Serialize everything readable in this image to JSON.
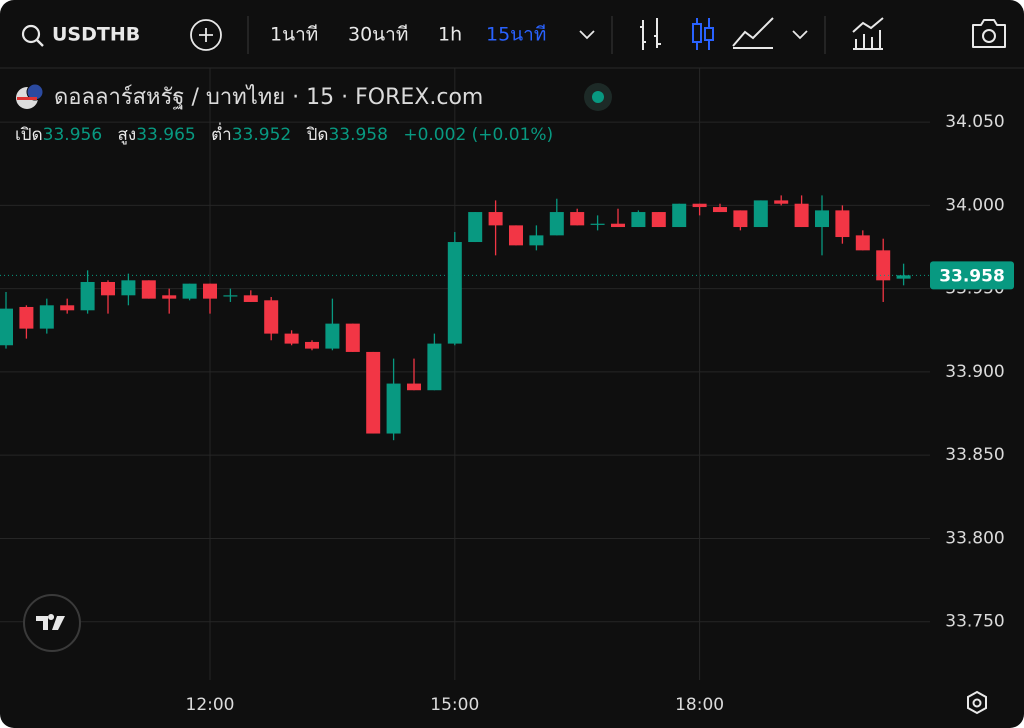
{
  "toolbar": {
    "symbol": "USDTHB",
    "intervals": [
      "1นาที",
      "30นาที",
      "1h",
      "15นาที"
    ],
    "active_interval": 3
  },
  "chart_data": {
    "type": "candlestick",
    "title": "ดอลลาร์สหรัฐ / บาทไทย · 15 · FOREX.com",
    "ohlc_labels": [
      "เปิด",
      "สูง",
      "ต่ำ",
      "ปิด"
    ],
    "change": "+0.002 (+0.01%)",
    "categories": [
      null,
      null,
      null,
      null,
      null,
      null,
      null,
      null,
      null,
      null,
      "12:00",
      null,
      null,
      null,
      null,
      null,
      null,
      null,
      null,
      null,
      null,
      null,
      "15:00",
      null,
      null,
      null,
      null,
      null,
      null,
      null,
      null,
      null,
      null,
      null,
      "18:00",
      null,
      null,
      null,
      null,
      null,
      null,
      null,
      null,
      null,
      null
    ],
    "open": [
      33.916,
      33.939,
      33.926,
      33.94,
      33.937,
      33.954,
      33.946,
      33.955,
      33.946,
      33.944,
      33.953,
      33.946,
      33.946,
      33.943,
      33.923,
      33.918,
      33.914,
      33.929,
      33.912,
      33.863,
      33.893,
      33.889,
      33.917,
      33.978,
      33.996,
      33.988,
      33.976,
      33.982,
      33.996,
      33.989,
      33.989,
      33.987,
      33.996,
      33.987,
      34.001,
      33.999,
      33.997,
      33.987,
      34.003,
      34.001,
      33.987,
      33.997,
      33.982,
      33.973,
      33.956
    ],
    "high": [
      33.948,
      33.94,
      33.944,
      33.944,
      33.961,
      33.955,
      33.959,
      33.955,
      33.95,
      33.953,
      33.953,
      33.95,
      33.949,
      33.945,
      33.925,
      33.919,
      33.944,
      33.929,
      33.912,
      33.908,
      33.908,
      33.923,
      33.984,
      33.996,
      34.003,
      33.988,
      33.988,
      34.004,
      33.998,
      33.994,
      33.998,
      33.997,
      33.996,
      34.001,
      34.001,
      34.001,
      33.997,
      34.003,
      34.006,
      34.006,
      34.006,
      34.0,
      33.985,
      33.98,
      33.965
    ],
    "low": [
      33.914,
      33.92,
      33.923,
      33.935,
      33.935,
      33.935,
      33.94,
      33.944,
      33.935,
      33.943,
      33.935,
      33.942,
      33.942,
      33.919,
      33.916,
      33.913,
      33.913,
      33.912,
      33.863,
      33.859,
      33.889,
      33.889,
      33.916,
      33.978,
      33.97,
      33.976,
      33.973,
      33.982,
      33.988,
      33.985,
      33.987,
      33.987,
      33.987,
      33.987,
      33.994,
      33.996,
      33.985,
      33.987,
      34.0,
      33.987,
      33.97,
      33.977,
      33.973,
      33.942,
      33.952
    ],
    "close": [
      33.938,
      33.926,
      33.94,
      33.937,
      33.954,
      33.946,
      33.955,
      33.944,
      33.944,
      33.953,
      33.944,
      33.946,
      33.942,
      33.923,
      33.917,
      33.914,
      33.929,
      33.912,
      33.863,
      33.893,
      33.889,
      33.917,
      33.978,
      33.996,
      33.988,
      33.976,
      33.982,
      33.996,
      33.988,
      33.989,
      33.987,
      33.996,
      33.987,
      34.001,
      33.999,
      33.996,
      33.987,
      34.003,
      34.001,
      33.987,
      33.997,
      33.981,
      33.973,
      33.955,
      33.958
    ],
    "up_color": "#089981",
    "down_color": "#f23645",
    "ylim": [
      33.715,
      34.0825
    ],
    "yticks": [
      {
        "value": 33.75,
        "label": "33.750"
      },
      {
        "value": 33.8,
        "label": "33.800"
      },
      {
        "value": 33.85,
        "label": "33.850"
      },
      {
        "value": 33.9,
        "label": "33.900"
      },
      {
        "value": 33.95,
        "label": "33.950"
      },
      {
        "value": 34,
        "label": "34.000"
      },
      {
        "value": 34.05,
        "label": "34.050"
      }
    ],
    "grid": true
  }
}
